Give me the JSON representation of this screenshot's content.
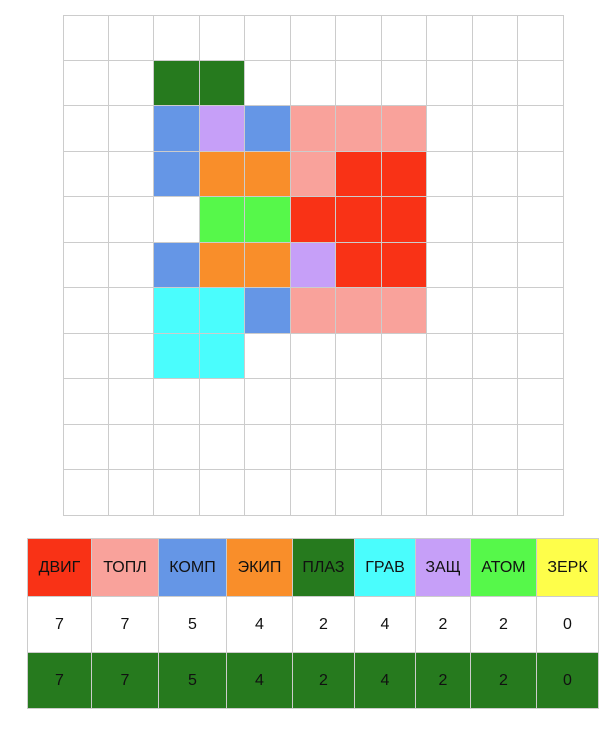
{
  "colors": {
    "DVIG": "#f93216",
    "TOPL": "#f9a29b",
    "KOMP": "#6596e6",
    "EKIP": "#f98e2a",
    "PLAZ": "#267a1e",
    "GRAV": "#4afdfd",
    "ZASCH": "#c69ff8",
    "ATOM": "#56f84a",
    "ZERK": "#fefe4a",
    "empty": "#ffffff"
  },
  "board": {
    "size": 11,
    "rows": [
      [
        "",
        "",
        "",
        "",
        "",
        "",
        "",
        "",
        "",
        "",
        ""
      ],
      [
        "",
        "",
        "PLAZ",
        "PLAZ",
        "",
        "",
        "",
        "",
        "",
        "",
        ""
      ],
      [
        "",
        "",
        "KOMP",
        "ZASCH",
        "KOMP",
        "TOPL",
        "TOPL",
        "TOPL",
        "",
        "",
        ""
      ],
      [
        "",
        "",
        "KOMP",
        "EKIP",
        "EKIP",
        "TOPL",
        "DVIG",
        "DVIG",
        "",
        "",
        ""
      ],
      [
        "",
        "",
        "",
        "ATOM",
        "ATOM",
        "DVIG",
        "DVIG",
        "DVIG",
        "",
        "",
        ""
      ],
      [
        "",
        "",
        "KOMP",
        "EKIP",
        "EKIP",
        "ZASCH",
        "DVIG",
        "DVIG",
        "",
        "",
        ""
      ],
      [
        "",
        "",
        "GRAV",
        "GRAV",
        "KOMP",
        "TOPL",
        "TOPL",
        "TOPL",
        "",
        "",
        ""
      ],
      [
        "",
        "",
        "GRAV",
        "GRAV",
        "",
        "",
        "",
        "",
        "",
        "",
        ""
      ],
      [
        "",
        "",
        "",
        "",
        "",
        "",
        "",
        "",
        "",
        "",
        ""
      ],
      [
        "",
        "",
        "",
        "",
        "",
        "",
        "",
        "",
        "",
        "",
        ""
      ],
      [
        "",
        "",
        "",
        "",
        "",
        "",
        "",
        "",
        "",
        "",
        ""
      ]
    ]
  },
  "legend": {
    "items": [
      {
        "key": "DVIG",
        "label": "ДВИГ",
        "count": "7",
        "target": "7"
      },
      {
        "key": "TOPL",
        "label": "ТОПЛ",
        "count": "7",
        "target": "7"
      },
      {
        "key": "KOMP",
        "label": "КОМП",
        "count": "5",
        "target": "5"
      },
      {
        "key": "EKIP",
        "label": "ЭКИП",
        "count": "4",
        "target": "4"
      },
      {
        "key": "PLAZ",
        "label": "ПЛАЗ",
        "count": "2",
        "target": "2"
      },
      {
        "key": "GRAV",
        "label": "ГРАВ",
        "count": "4",
        "target": "4"
      },
      {
        "key": "ZASCH",
        "label": "ЗАЩ",
        "count": "2",
        "target": "2"
      },
      {
        "key": "ATOM",
        "label": "АТОМ",
        "count": "2",
        "target": "2"
      },
      {
        "key": "ZERK",
        "label": "ЗЕРК",
        "count": "0",
        "target": "0"
      }
    ]
  }
}
